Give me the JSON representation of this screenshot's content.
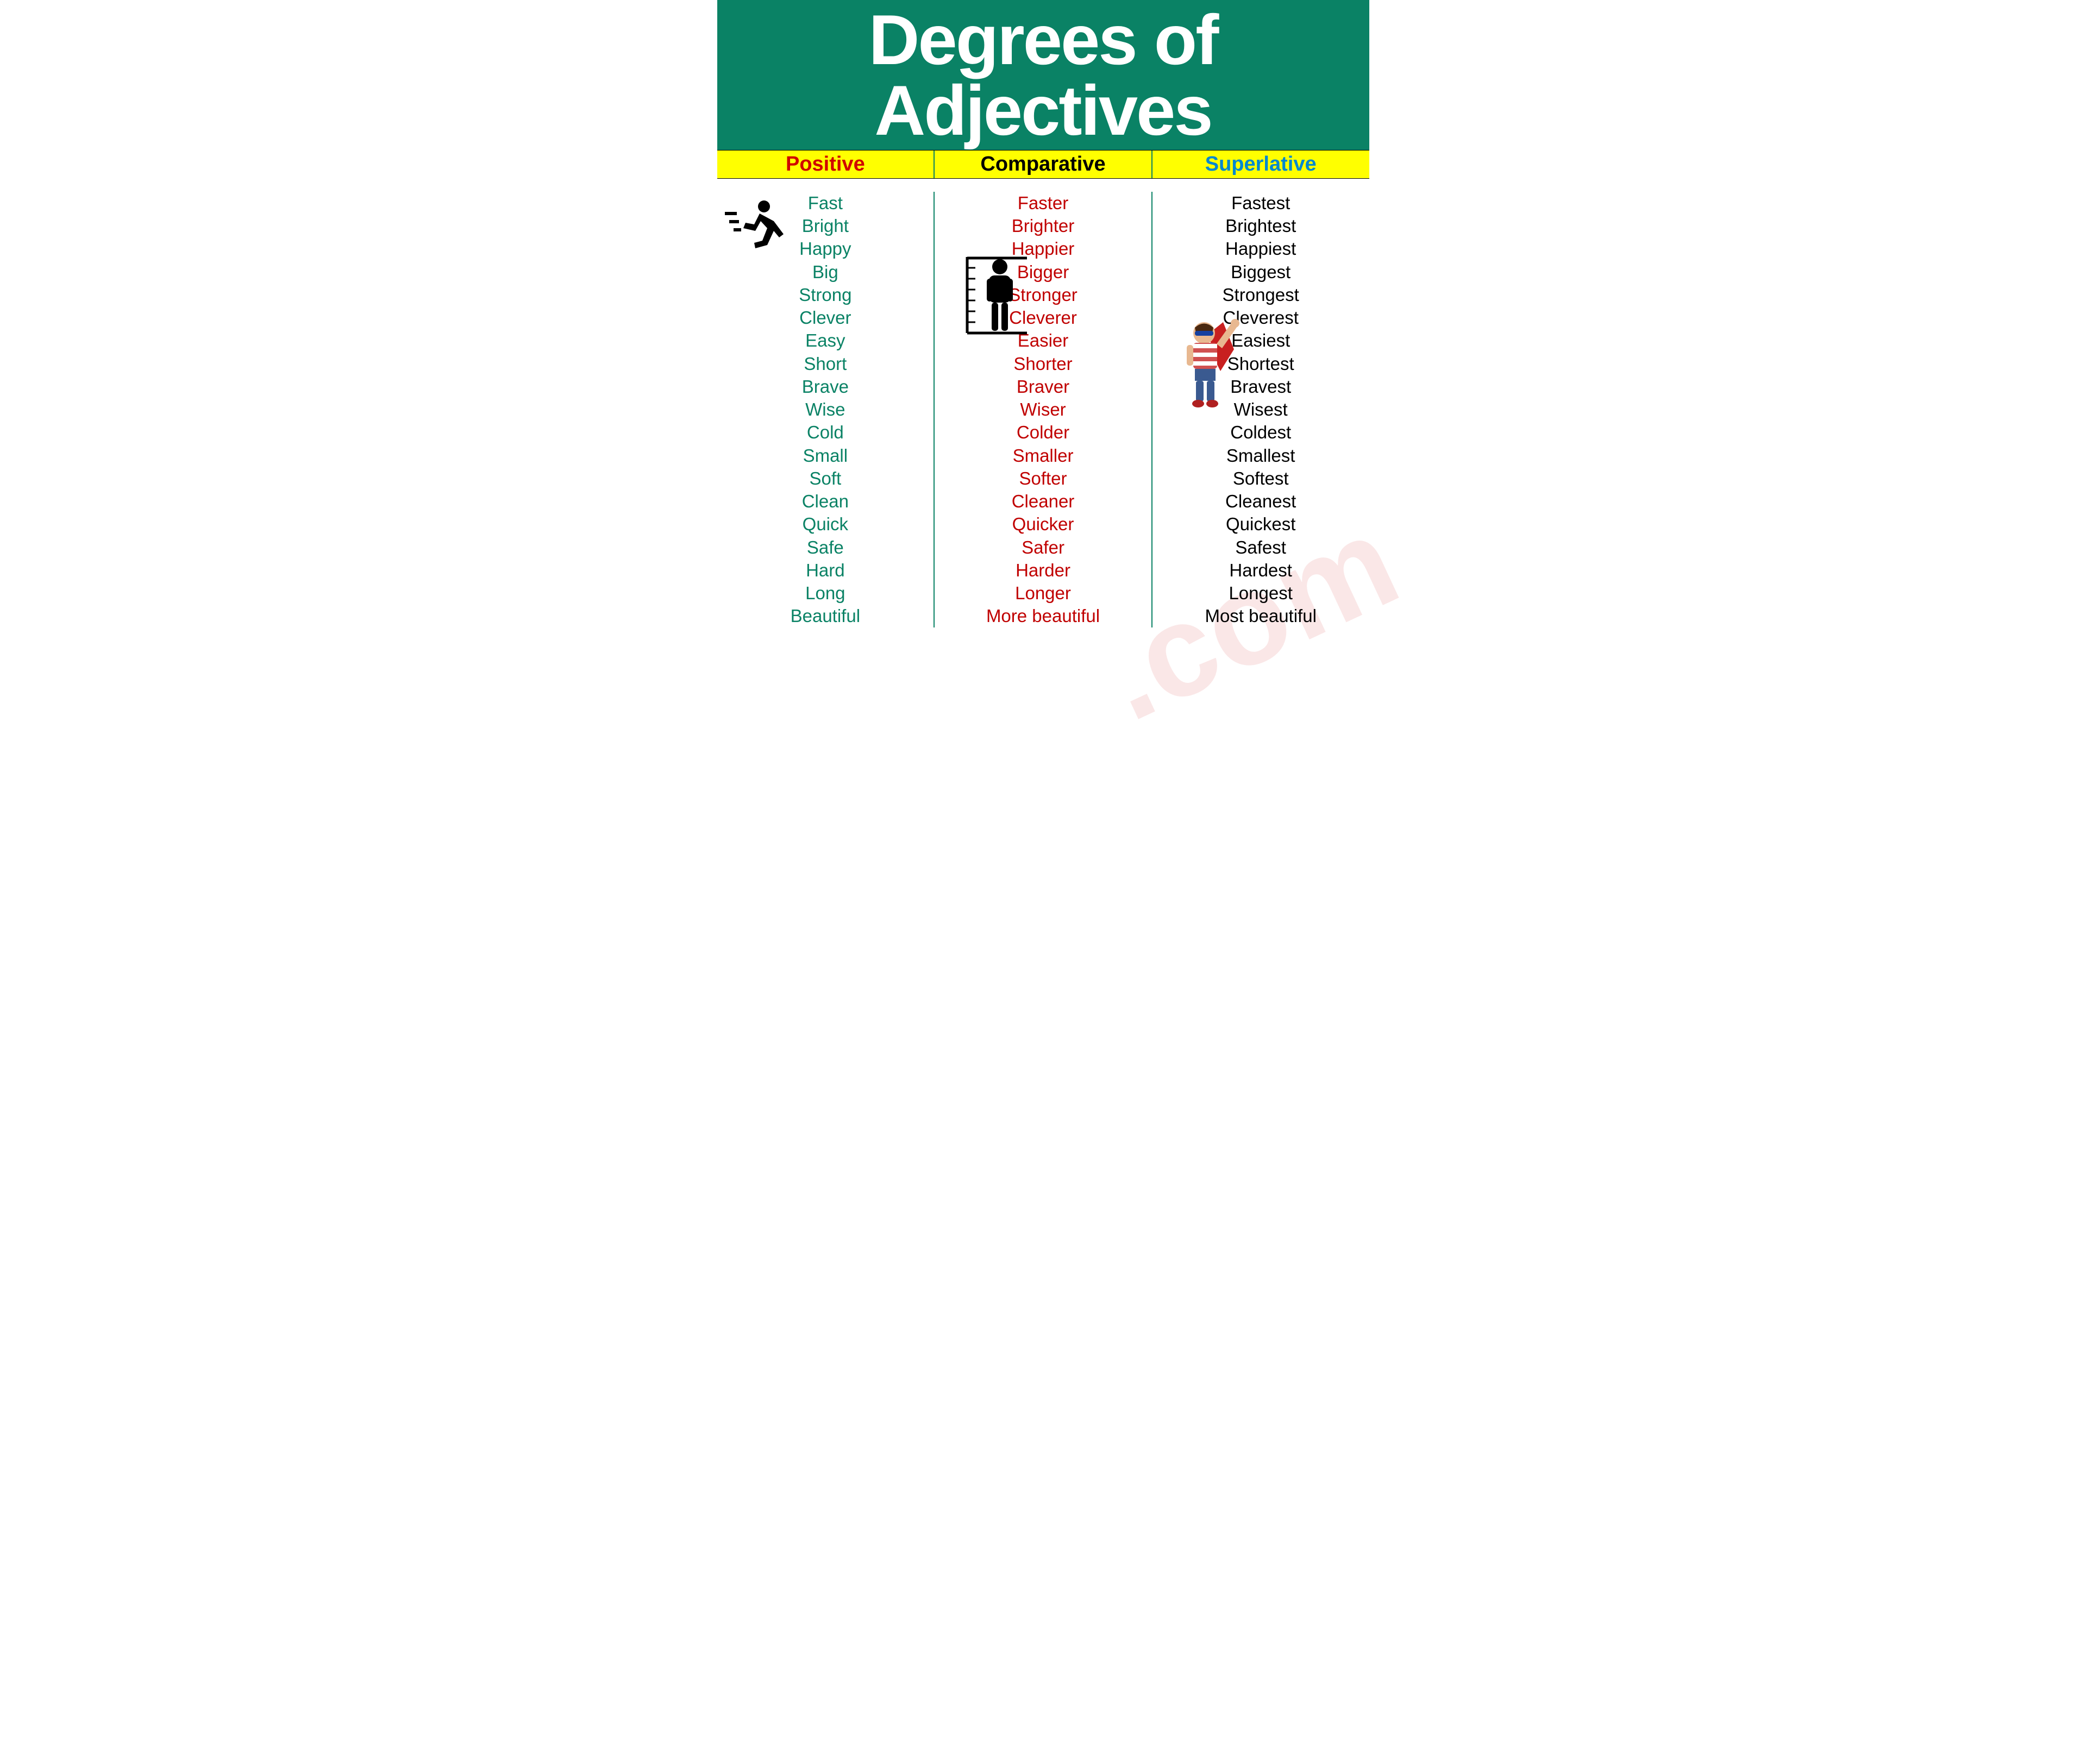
{
  "title": "Degrees of Adjectives",
  "headers": {
    "positive": "Positive",
    "comparative": "Comparative",
    "superlative": "Superlative"
  },
  "colors": {
    "title_bg": "#0a8265",
    "title_fg": "#ffffff",
    "header_bg": "#ffff00",
    "header_positive": "#d00000",
    "header_comparative": "#000000",
    "header_superlative": "#0088d0",
    "col_positive": "#0a8265",
    "col_comparative": "#c00000",
    "col_superlative": "#000000",
    "divider": "#0a8265",
    "watermark": "#f7d5d5"
  },
  "rows": [
    {
      "positive": "Fast",
      "comparative": "Faster",
      "superlative": "Fastest"
    },
    {
      "positive": "Bright",
      "comparative": "Brighter",
      "superlative": "Brightest"
    },
    {
      "positive": "Happy",
      "comparative": "Happier",
      "superlative": "Happiest"
    },
    {
      "positive": "Big",
      "comparative": "Bigger",
      "superlative": "Biggest"
    },
    {
      "positive": "Strong",
      "comparative": "Stronger",
      "superlative": "Strongest"
    },
    {
      "positive": "Clever",
      "comparative": "Cleverer",
      "superlative": "Cleverest"
    },
    {
      "positive": "Easy",
      "comparative": "Easier",
      "superlative": "Easiest"
    },
    {
      "positive": "Short",
      "comparative": "Shorter",
      "superlative": "Shortest"
    },
    {
      "positive": "Brave",
      "comparative": "Braver",
      "superlative": "Bravest"
    },
    {
      "positive": "Wise",
      "comparative": "Wiser",
      "superlative": "Wisest"
    },
    {
      "positive": "Cold",
      "comparative": "Colder",
      "superlative": "Coldest"
    },
    {
      "positive": "Small",
      "comparative": "Smaller",
      "superlative": "Smallest"
    },
    {
      "positive": "Soft",
      "comparative": "Softer",
      "superlative": "Softest"
    },
    {
      "positive": "Clean",
      "comparative": "Cleaner",
      "superlative": "Cleanest"
    },
    {
      "positive": "Quick",
      "comparative": "Quicker",
      "superlative": "Quickest"
    },
    {
      "positive": "Safe",
      "comparative": "Safer",
      "superlative": "Safest"
    },
    {
      "positive": "Hard",
      "comparative": "Harder",
      "superlative": "Hardest"
    },
    {
      "positive": "Long",
      "comparative": "Longer",
      "superlative": "Longest"
    },
    {
      "positive": "Beautiful",
      "comparative": "More beautiful",
      "superlative": "Most beautiful"
    }
  ],
  "watermark_text": ".com",
  "icons": {
    "runner": "running-person-icon",
    "height": "height-measure-icon",
    "hero": "superhero-kid-icon"
  }
}
